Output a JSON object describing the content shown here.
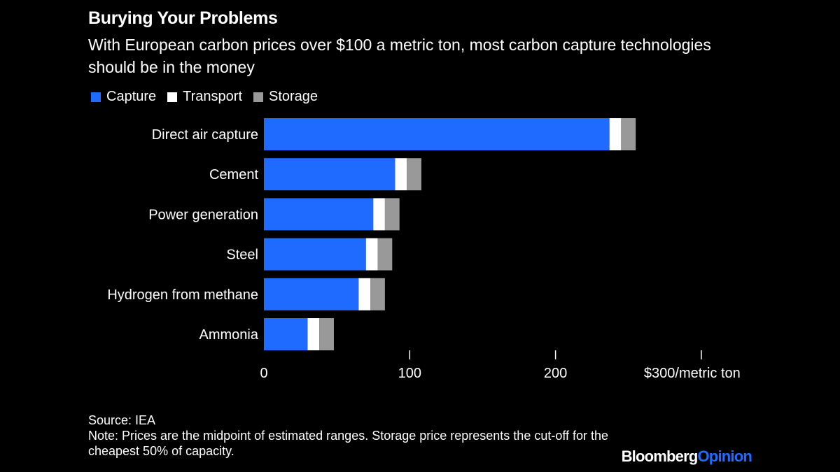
{
  "header": {
    "title": "Burying Your Problems",
    "subtitle": "With European carbon prices over $100 a metric ton, most carbon capture technologies should be in the money"
  },
  "legend": {
    "items": [
      {
        "label": "Capture",
        "color": "#1f6bff"
      },
      {
        "label": "Transport",
        "color": "#ffffff"
      },
      {
        "label": "Storage",
        "color": "#999999"
      }
    ]
  },
  "chart_data": {
    "type": "bar",
    "orientation": "horizontal",
    "stacked": true,
    "categories": [
      "Direct air capture",
      "Cement",
      "Power generation",
      "Steel",
      "Hydrogen from methane",
      "Ammonia"
    ],
    "series": [
      {
        "name": "Capture",
        "color": "#1f6bff",
        "values": [
          237,
          90,
          75,
          70,
          65,
          30
        ]
      },
      {
        "name": "Transport",
        "color": "#ffffff",
        "values": [
          8,
          8,
          8,
          8,
          8,
          8
        ]
      },
      {
        "name": "Storage",
        "color": "#999999",
        "values": [
          10,
          10,
          10,
          10,
          10,
          10
        ]
      }
    ],
    "xlim": [
      0,
      300
    ],
    "xticks": [
      0,
      100,
      200,
      300
    ],
    "xtick_labels": [
      "0",
      "100",
      "200",
      "$300/metric ton"
    ],
    "grid": false,
    "legend_position": "top-left"
  },
  "footer": {
    "source": "Source: IEA",
    "note": "Note: Prices are the midpoint of estimated ranges. Storage price represents the cut-off for the cheapest 50% of capacity."
  },
  "brand": {
    "part1": "Bloomberg",
    "part2": "Opinion"
  }
}
